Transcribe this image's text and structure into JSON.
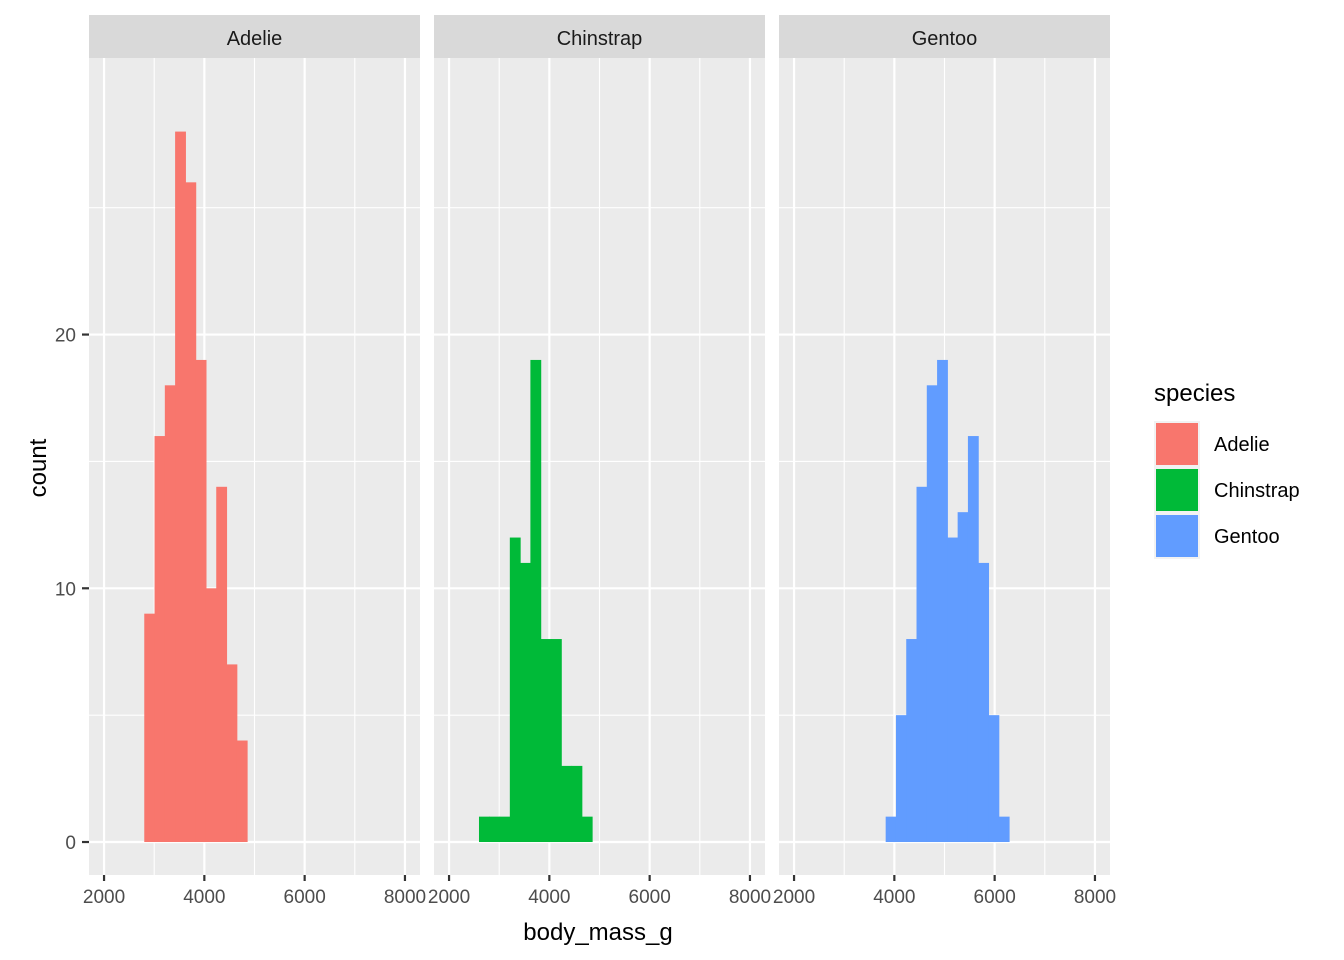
{
  "chart_data": {
    "type": "bar",
    "subtype": "faceted-histogram",
    "xlabel": "body_mass_g",
    "ylabel": "count",
    "xlim": [
      1700,
      8300
    ],
    "ylim": [
      -1.3,
      30.9
    ],
    "x_ticks": [
      2000,
      4000,
      6000,
      8000
    ],
    "x_minor": [
      3000,
      5000,
      7000
    ],
    "y_ticks": [
      0,
      10,
      20
    ],
    "y_minor": [
      5,
      15,
      25
    ],
    "bin_width": 206,
    "legend": {
      "title": "species",
      "position": "right",
      "items": [
        {
          "label": "Adelie",
          "color": "#F8766D"
        },
        {
          "label": "Chinstrap",
          "color": "#00BA38"
        },
        {
          "label": "Gentoo",
          "color": "#619CFF"
        }
      ]
    },
    "facets": [
      {
        "name": "Adelie",
        "color": "#F8766D",
        "bins": [
          {
            "x": 2905,
            "count": 9
          },
          {
            "x": 3110,
            "count": 16
          },
          {
            "x": 3315,
            "count": 18
          },
          {
            "x": 3520,
            "count": 28
          },
          {
            "x": 3725,
            "count": 26
          },
          {
            "x": 3930,
            "count": 19
          },
          {
            "x": 4135,
            "count": 10
          },
          {
            "x": 4340,
            "count": 14
          },
          {
            "x": 4545,
            "count": 7
          },
          {
            "x": 4750,
            "count": 4
          }
        ]
      },
      {
        "name": "Chinstrap",
        "color": "#00BA38",
        "bins": [
          {
            "x": 2700,
            "count": 1
          },
          {
            "x": 2905,
            "count": 1
          },
          {
            "x": 3110,
            "count": 1
          },
          {
            "x": 3315,
            "count": 12
          },
          {
            "x": 3520,
            "count": 11
          },
          {
            "x": 3725,
            "count": 19
          },
          {
            "x": 3930,
            "count": 8
          },
          {
            "x": 4135,
            "count": 8
          },
          {
            "x": 4340,
            "count": 3
          },
          {
            "x": 4545,
            "count": 3
          },
          {
            "x": 4750,
            "count": 1
          }
        ]
      },
      {
        "name": "Gentoo",
        "color": "#619CFF",
        "bins": [
          {
            "x": 3930,
            "count": 1
          },
          {
            "x": 4135,
            "count": 5
          },
          {
            "x": 4340,
            "count": 8
          },
          {
            "x": 4545,
            "count": 14
          },
          {
            "x": 4750,
            "count": 18
          },
          {
            "x": 4955,
            "count": 19
          },
          {
            "x": 5160,
            "count": 12
          },
          {
            "x": 5365,
            "count": 13
          },
          {
            "x": 5570,
            "count": 16
          },
          {
            "x": 5775,
            "count": 11
          },
          {
            "x": 5980,
            "count": 5
          },
          {
            "x": 6185,
            "count": 1
          }
        ]
      }
    ]
  }
}
